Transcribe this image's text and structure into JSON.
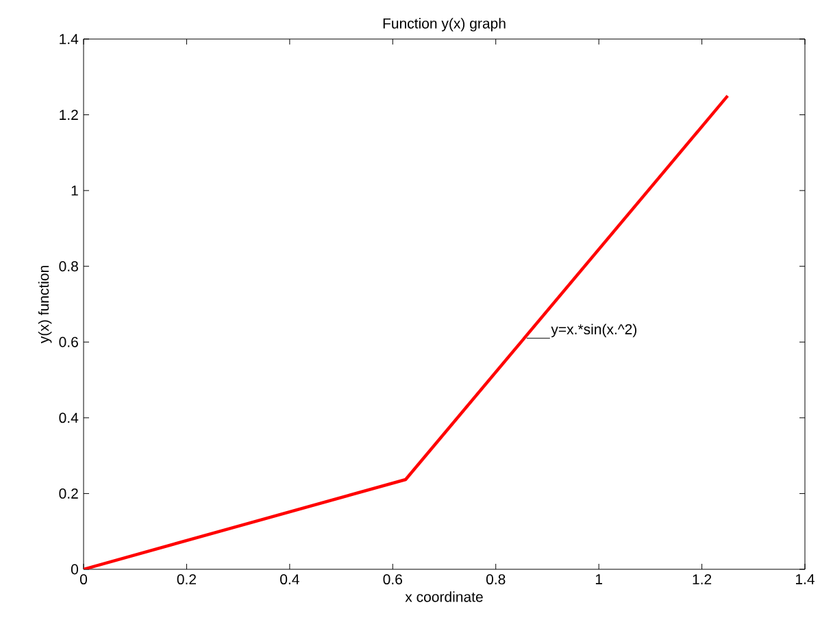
{
  "chart_data": {
    "type": "line",
    "title": "Function y(x) graph",
    "xlabel": "x coordinate",
    "ylabel": "y(x) function",
    "x": [
      0,
      0.625,
      1.25
    ],
    "series": [
      {
        "color": "#ff0000",
        "values": [
          0,
          0.237,
          1.25
        ]
      }
    ],
    "xlim": [
      0,
      1.4
    ],
    "ylim": [
      0,
      1.4
    ],
    "xticks": [
      0,
      0.2,
      0.4,
      0.6,
      0.8,
      1,
      1.2,
      1.4
    ],
    "yticks": [
      0,
      0.2,
      0.4,
      0.6,
      0.8,
      1,
      1.2,
      1.4
    ],
    "grid": false,
    "marker": "none",
    "line_style": "solid",
    "annotations": [
      {
        "text": "y=x.*sin(x.^2)",
        "x": 0.86,
        "y": 0.61
      }
    ]
  }
}
